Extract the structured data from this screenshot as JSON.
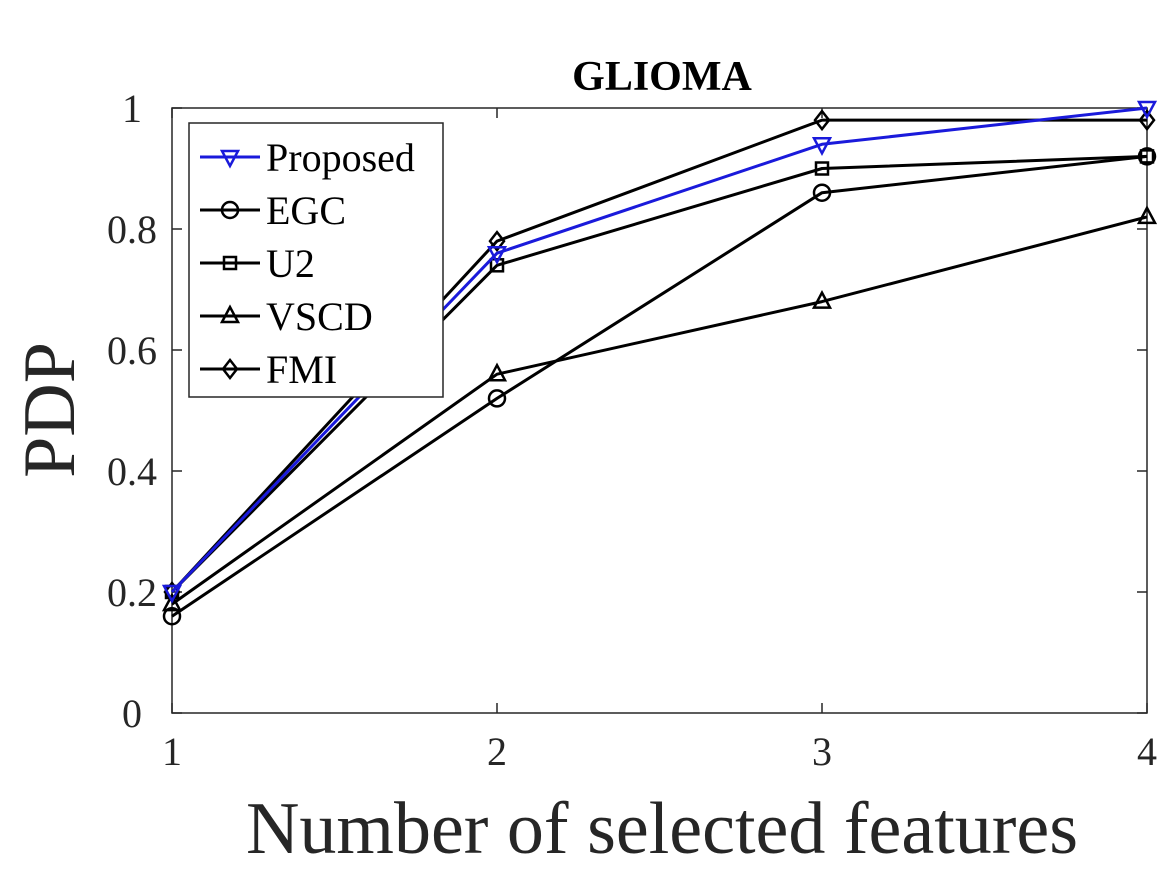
{
  "chart_data": {
    "type": "line",
    "title": "GLIOMA",
    "xlabel": "Number of selected features",
    "ylabel": "PDP",
    "x": [
      1,
      2,
      3,
      4
    ],
    "xlim": [
      1,
      4
    ],
    "ylim": [
      0,
      1
    ],
    "xticks": [
      "1",
      "2",
      "3",
      "4"
    ],
    "yticks": [
      "0",
      "0.2",
      "0.4",
      "0.6",
      "0.8",
      "1"
    ],
    "grid": false,
    "legend_position": "top-left",
    "series": [
      {
        "name": "Proposed",
        "values": [
          0.2,
          0.76,
          0.94,
          1.0
        ],
        "color": "#1a1adb",
        "marker": "triangle-down"
      },
      {
        "name": "EGC",
        "values": [
          0.16,
          0.52,
          0.86,
          0.92
        ],
        "color": "#000000",
        "marker": "circle"
      },
      {
        "name": "U2",
        "values": [
          0.2,
          0.74,
          0.9,
          0.92
        ],
        "color": "#000000",
        "marker": "square"
      },
      {
        "name": "VSCD",
        "values": [
          0.18,
          0.56,
          0.68,
          0.82
        ],
        "color": "#000000",
        "marker": "triangle-up"
      },
      {
        "name": "FMI",
        "values": [
          0.2,
          0.78,
          0.98,
          0.98
        ],
        "color": "#000000",
        "marker": "diamond"
      }
    ]
  }
}
